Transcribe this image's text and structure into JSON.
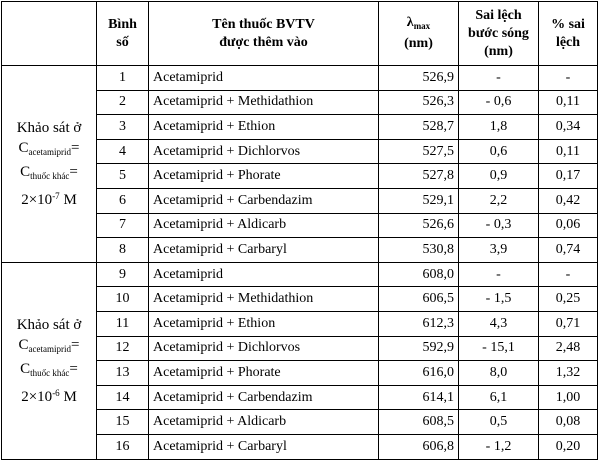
{
  "header": {
    "col_group": "",
    "col_no_line1": "Bình",
    "col_no_line2": "số",
    "col_name_line1": "Tên thuốc BVTV",
    "col_name_line2": "được thêm vào",
    "col_lambda_symbol": "λ",
    "col_lambda_sub": "max",
    "col_lambda_unit": "(nm)",
    "col_dev_line1": "Sai lệch",
    "col_dev_line2": "bước sóng",
    "col_dev_line3": "(nm)",
    "col_pct_line1": "% sai",
    "col_pct_line2": "lệch"
  },
  "groups": [
    {
      "line1": "Khảo sát ở",
      "c1": "C",
      "c1_sub": "acetamiprid",
      "eq1": "=",
      "c2": "C",
      "c2_sub": "thuốc khác",
      "eq2": "=",
      "conc_base": "2×10",
      "conc_exp": "-7",
      "conc_unit": " M",
      "rows": [
        {
          "no": "1",
          "name": "Acetamiprid",
          "lambda": "526,9",
          "dev": "-",
          "pct": "-"
        },
        {
          "no": "2",
          "name": "Acetamiprid + Methidathion",
          "lambda": "526,3",
          "dev": "- 0,6",
          "pct": "0,11"
        },
        {
          "no": "3",
          "name": "Acetamiprid + Ethion",
          "lambda": "528,7",
          "dev": "1,8",
          "pct": "0,34"
        },
        {
          "no": "4",
          "name": "Acetamiprid + Dichlorvos",
          "lambda": "527,5",
          "dev": "0,6",
          "pct": "0,11"
        },
        {
          "no": "5",
          "name": "Acetamiprid + Phorate",
          "lambda": "527,8",
          "dev": "0,9",
          "pct": "0,17"
        },
        {
          "no": "6",
          "name": "Acetamiprid + Carbendazim",
          "lambda": "529,1",
          "dev": "2,2",
          "pct": "0,42"
        },
        {
          "no": "7",
          "name": "Acetamiprid + Aldicarb",
          "lambda": "526,6",
          "dev": "- 0,3",
          "pct": "0,06"
        },
        {
          "no": "8",
          "name": "Acetamiprid + Carbaryl",
          "lambda": "530,8",
          "dev": "3,9",
          "pct": "0,74"
        }
      ]
    },
    {
      "line1": "Khảo sát ở",
      "c1": "C",
      "c1_sub": "acetamiprid",
      "eq1": "=",
      "c2": "C",
      "c2_sub": "thuốc khác",
      "eq2": "=",
      "conc_base": "2×10",
      "conc_exp": "-6",
      "conc_unit": " M",
      "rows": [
        {
          "no": "9",
          "name": "Acetamiprid",
          "lambda": "608,0",
          "dev": "-",
          "pct": "-"
        },
        {
          "no": "10",
          "name": "Acetamiprid + Methidathion",
          "lambda": "606,5",
          "dev": "- 1,5",
          "pct": "0,25"
        },
        {
          "no": "11",
          "name": "Acetamiprid + Ethion",
          "lambda": "612,3",
          "dev": "4,3",
          "pct": "0,71"
        },
        {
          "no": "12",
          "name": "Acetamiprid + Dichlorvos",
          "lambda": "592,9",
          "dev": "- 15,1",
          "pct": "2,48"
        },
        {
          "no": "13",
          "name": "Acetamiprid + Phorate",
          "lambda": "616,0",
          "dev": "8,0",
          "pct": "1,32"
        },
        {
          "no": "14",
          "name": "Acetamiprid + Carbendazim",
          "lambda": "614,1",
          "dev": "6,1",
          "pct": "1,00"
        },
        {
          "no": "15",
          "name": "Acetamiprid + Aldicarb",
          "lambda": "608,5",
          "dev": "0,5",
          "pct": "0,08"
        },
        {
          "no": "16",
          "name": "Acetamiprid + Carbaryl",
          "lambda": "606,8",
          "dev": "- 1,2",
          "pct": "0,20"
        }
      ]
    }
  ]
}
